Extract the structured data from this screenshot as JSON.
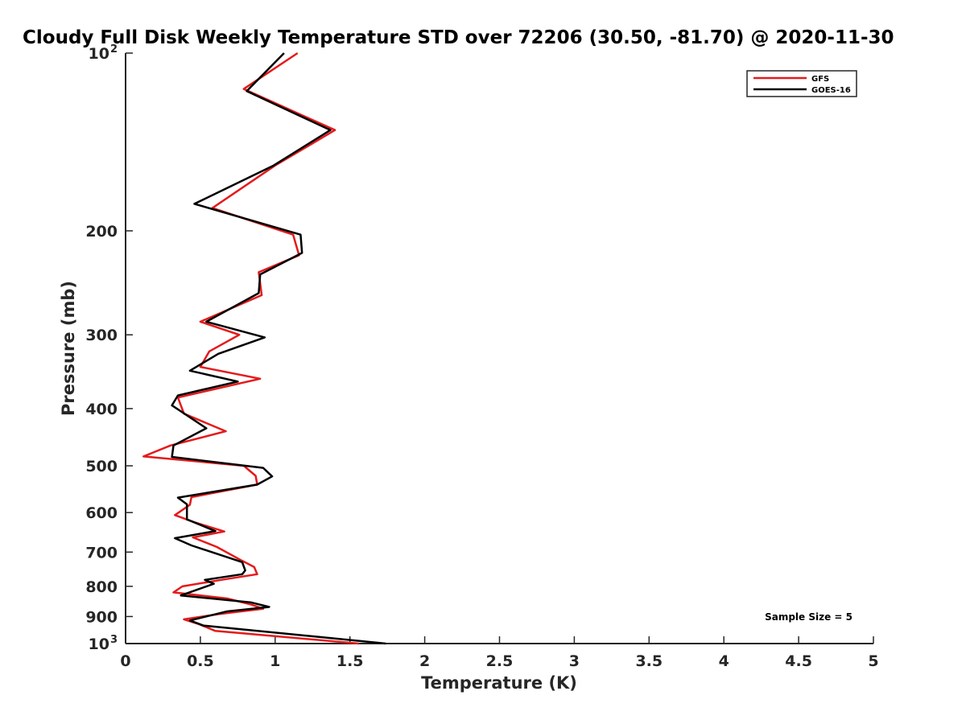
{
  "chart_data": {
    "type": "line",
    "title": "Cloudy Full Disk Weekly Temperature STD over 72206 (30.50, -81.70) @ 2020-11-30",
    "xlabel": "Temperature (K)",
    "ylabel": "Pressure (mb)",
    "xlim": [
      0,
      5
    ],
    "ylim": [
      100,
      1000
    ],
    "y_scale": "log",
    "y_reversed": true,
    "x_ticks": [
      "0",
      "0.5",
      "1",
      "1.5",
      "2",
      "2.5",
      "3",
      "3.5",
      "4",
      "4.5",
      "5"
    ],
    "y_ticks": [
      {
        "value": 100,
        "label": "10",
        "sup": "2"
      },
      {
        "value": 200,
        "label": "200"
      },
      {
        "value": 300,
        "label": "300"
      },
      {
        "value": 400,
        "label": "400"
      },
      {
        "value": 500,
        "label": "500"
      },
      {
        "value": 600,
        "label": "600"
      },
      {
        "value": 700,
        "label": "700"
      },
      {
        "value": 800,
        "label": "800"
      },
      {
        "value": 900,
        "label": "900"
      },
      {
        "value": 1000,
        "label": "10",
        "sup": "3"
      }
    ],
    "grid": false,
    "legend_position": "top-right",
    "annotation": "Sample Size = 5",
    "series": [
      {
        "name": "GFS",
        "color": "#e41a1c",
        "points": [
          [
            1.15,
            100
          ],
          [
            0.79,
            115
          ],
          [
            1.4,
            135
          ],
          [
            1.0,
            155
          ],
          [
            0.58,
            183
          ],
          [
            1.12,
            203
          ],
          [
            1.16,
            220
          ],
          [
            0.89,
            235
          ],
          [
            0.91,
            257
          ],
          [
            0.5,
            285
          ],
          [
            0.76,
            300
          ],
          [
            0.56,
            320
          ],
          [
            0.5,
            340
          ],
          [
            0.9,
            356
          ],
          [
            0.35,
            383
          ],
          [
            0.39,
            408
          ],
          [
            0.67,
            437
          ],
          [
            0.3,
            462
          ],
          [
            0.12,
            482
          ],
          [
            0.79,
            500
          ],
          [
            0.87,
            520
          ],
          [
            0.88,
            538
          ],
          [
            0.44,
            565
          ],
          [
            0.43,
            582
          ],
          [
            0.33,
            606
          ],
          [
            0.45,
            622
          ],
          [
            0.66,
            646
          ],
          [
            0.45,
            661
          ],
          [
            0.61,
            686
          ],
          [
            0.77,
            722
          ],
          [
            0.86,
            742
          ],
          [
            0.88,
            763
          ],
          [
            0.64,
            780
          ],
          [
            0.38,
            800
          ],
          [
            0.32,
            819
          ],
          [
            0.68,
            839
          ],
          [
            0.84,
            859
          ],
          [
            0.92,
            873
          ],
          [
            0.63,
            891
          ],
          [
            0.39,
            910
          ],
          [
            0.49,
            927
          ],
          [
            0.6,
            952
          ],
          [
            1.56,
            1000
          ]
        ]
      },
      {
        "name": "GOES-16",
        "color": "#000000",
        "points": [
          [
            1.06,
            100
          ],
          [
            0.81,
            116
          ],
          [
            1.37,
            135
          ],
          [
            0.99,
            155
          ],
          [
            0.46,
            180
          ],
          [
            1.17,
            203
          ],
          [
            1.18,
            218
          ],
          [
            0.9,
            237
          ],
          [
            0.89,
            255
          ],
          [
            0.54,
            285
          ],
          [
            0.93,
            303
          ],
          [
            0.62,
            323
          ],
          [
            0.43,
            345
          ],
          [
            0.75,
            360
          ],
          [
            0.35,
            380
          ],
          [
            0.31,
            395
          ],
          [
            0.54,
            432
          ],
          [
            0.32,
            462
          ],
          [
            0.31,
            483
          ],
          [
            0.92,
            504
          ],
          [
            0.98,
            521
          ],
          [
            0.88,
            538
          ],
          [
            0.35,
            566
          ],
          [
            0.41,
            581
          ],
          [
            0.41,
            602
          ],
          [
            0.41,
            616
          ],
          [
            0.6,
            645
          ],
          [
            0.33,
            663
          ],
          [
            0.44,
            682
          ],
          [
            0.78,
            728
          ],
          [
            0.8,
            752
          ],
          [
            0.78,
            763
          ],
          [
            0.53,
            780
          ],
          [
            0.59,
            792
          ],
          [
            0.37,
            829
          ],
          [
            0.84,
            852
          ],
          [
            0.96,
            867
          ],
          [
            0.68,
            882
          ],
          [
            0.43,
            914
          ],
          [
            0.52,
            932
          ],
          [
            1.74,
            1000
          ]
        ]
      }
    ]
  }
}
